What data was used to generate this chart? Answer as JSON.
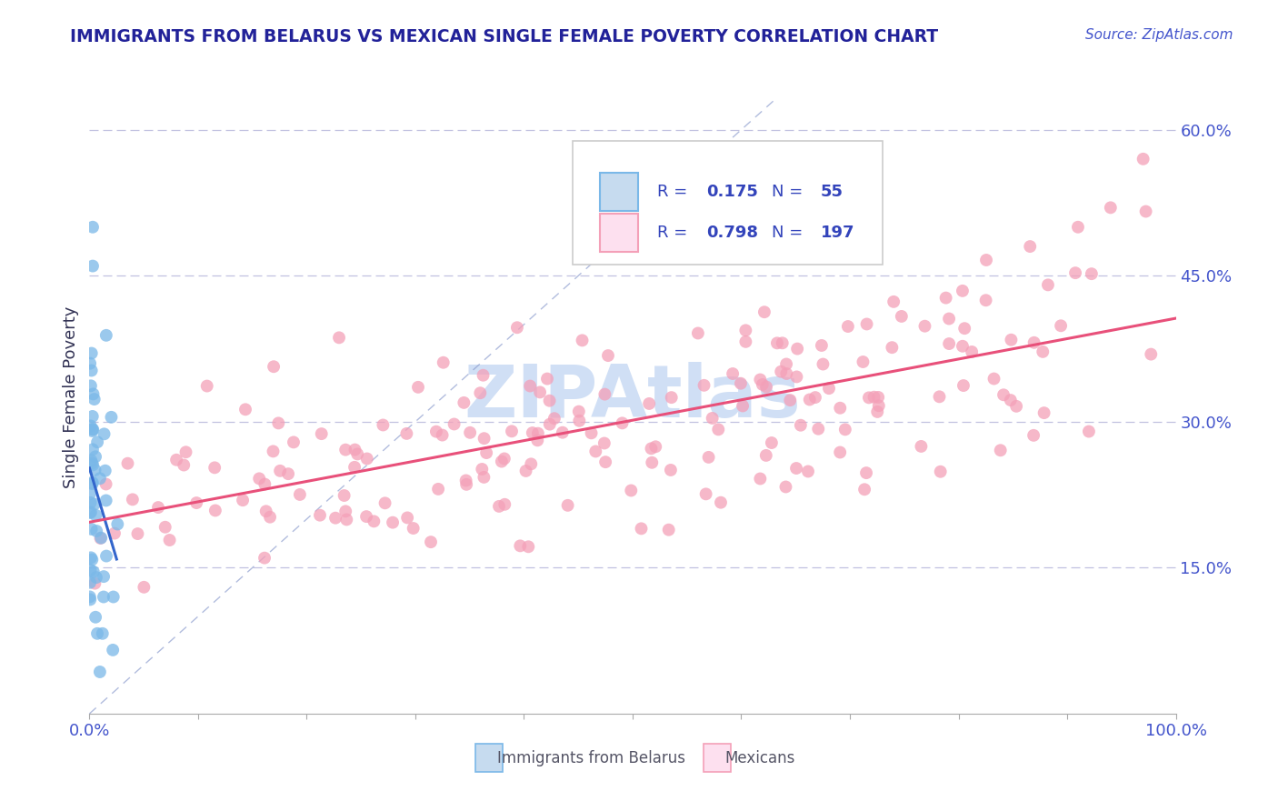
{
  "title": "IMMIGRANTS FROM BELARUS VS MEXICAN SINGLE FEMALE POVERTY CORRELATION CHART",
  "source": "Source: ZipAtlas.com",
  "ylabel": "Single Female Poverty",
  "watermark": "ZIPAtlas",
  "blue_color": "#7ab8e8",
  "blue_edge": "#7ab8e8",
  "pink_color": "#f4a0b8",
  "pink_edge": "#f4a0b8",
  "blue_line_color": "#3366cc",
  "pink_line_color": "#e8507a",
  "title_color": "#222299",
  "axis_color": "#4455cc",
  "grid_color": "#bbbbdd",
  "watermark_color": "#d0dff5",
  "legend_text_color": "#3344bb",
  "legend_r_blue": "R = ",
  "legend_v_blue": "0.175",
  "legend_n_blue": "N = ",
  "legend_nv_blue": "55",
  "legend_r_pink": "R = ",
  "legend_v_pink": "0.798",
  "legend_n_pink": "N = ",
  "legend_nv_pink": "197"
}
